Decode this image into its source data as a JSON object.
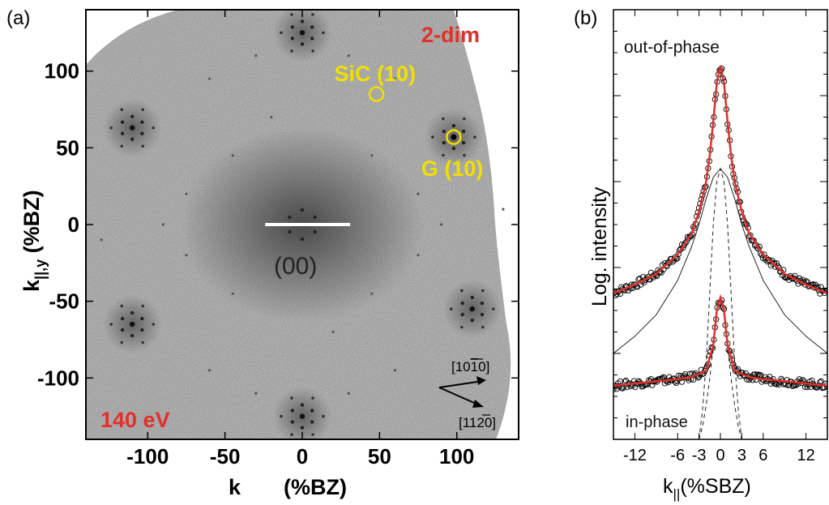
{
  "panels": {
    "a": {
      "label": "(a)",
      "energy": "140 eV",
      "dimension": "2-dim",
      "center_spot": "(00)",
      "spots": [
        {
          "label": "SiC (10)",
          "kx": 48,
          "ky": 85
        },
        {
          "label": "G (10)",
          "kx": 98,
          "ky": 57
        }
      ],
      "directions": [
        {
          "label": "[10",
          "bar_digit": "1",
          "tail": "0]"
        },
        {
          "label": "[11",
          "bar_digit": "2",
          "tail": "0]"
        }
      ],
      "colors": {
        "energy": "#e0302a",
        "dimension": "#e0302a",
        "spots": "#f0e000",
        "linecut": "#ffffff"
      }
    },
    "b": {
      "label": "(b)",
      "top_curve_label": "out-of-phase",
      "bottom_curve_label": "in-phase",
      "colors": {
        "fit": "#e0302a",
        "data": "#000000"
      }
    }
  },
  "chart_data": [
    {
      "type": "heatmap",
      "title": "",
      "xlabel": "k",
      "xlabel_unit": "(%BZ)",
      "ylabel": "k",
      "ylabel_sub": "||,y",
      "ylabel_unit": "(%BZ)",
      "xlim": [
        -140,
        140
      ],
      "ylim": [
        -140,
        140
      ],
      "xticks": [
        -100,
        -50,
        0,
        50,
        100
      ],
      "yticks": [
        100,
        50,
        0,
        -50,
        -100
      ],
      "linecut": {
        "x": [
          -24,
          31
        ],
        "y": 0
      },
      "satellite_clusters": [
        {
          "kx": -110,
          "ky": 63
        },
        {
          "kx": 110,
          "ky": -55
        },
        {
          "kx": -110,
          "ky": -65
        },
        {
          "kx": 0,
          "ky": 125
        },
        {
          "kx": 0,
          "ky": -125
        },
        {
          "kx": 98,
          "ky": 57
        }
      ]
    },
    {
      "type": "line",
      "title": "",
      "xlabel": "k",
      "xlabel_sub": "||",
      "xlabel_unit": "(%SBZ)",
      "ylabel": "Log. intensity",
      "xlim": [
        -15,
        15
      ],
      "xticks": [
        -12,
        -6,
        -3,
        0,
        3,
        6,
        12
      ],
      "ylim": [
        0,
        10
      ],
      "series": [
        {
          "x": [
            -15,
            -12,
            -9,
            -6,
            -4,
            -3,
            -2,
            -1.5,
            -1,
            -0.5,
            0,
            0.5,
            1,
            1.5,
            2,
            3,
            4,
            6,
            9,
            12,
            15
          ],
          "y": [
            3.4,
            3.6,
            3.85,
            4.3,
            4.8,
            5.3,
            6.0,
            6.6,
            7.4,
            8.3,
            8.7,
            8.3,
            7.4,
            6.6,
            6.0,
            5.3,
            4.8,
            4.3,
            3.85,
            3.6,
            3.4
          ]
        },
        {
          "x": [
            -15,
            -12,
            -9,
            -6,
            -4,
            -2,
            -1,
            -0.5,
            0,
            0.5,
            1,
            2,
            4,
            6,
            9,
            12,
            15
          ],
          "y": [
            1.25,
            1.3,
            1.35,
            1.4,
            1.45,
            1.6,
            2.2,
            3.0,
            3.3,
            3.0,
            2.2,
            1.6,
            1.45,
            1.4,
            1.35,
            1.3,
            1.25
          ]
        },
        {
          "x": [
            -15,
            -12,
            -9,
            -6,
            -4,
            -3,
            -2,
            -1,
            0,
            1,
            2,
            3,
            4,
            6,
            9,
            12,
            15
          ],
          "y": [
            2.0,
            2.4,
            2.9,
            3.7,
            4.5,
            5.0,
            5.6,
            6.1,
            6.3,
            6.1,
            5.6,
            5.0,
            4.5,
            3.7,
            2.9,
            2.4,
            2.0
          ]
        },
        {
          "x": [
            -3,
            -2.5,
            -2,
            -1.5,
            -1,
            -0.5,
            0,
            0.5,
            1,
            1.5,
            2,
            2.5,
            3
          ],
          "y": [
            0.0,
            0.7,
            1.8,
            3.4,
            5.0,
            6.0,
            6.3,
            6.0,
            5.0,
            3.4,
            1.8,
            0.7,
            0.0
          ]
        },
        {
          "x": [
            -3,
            -2.5,
            -2,
            -1.5,
            -1,
            -0.5,
            0,
            0.5,
            1,
            1.5,
            2,
            2.5,
            3
          ],
          "y": [
            0.0,
            0.3,
            0.8,
            1.4,
            2.2,
            3.0,
            3.3,
            3.0,
            2.2,
            1.4,
            0.8,
            0.3,
            0.0
          ]
        }
      ]
    }
  ]
}
